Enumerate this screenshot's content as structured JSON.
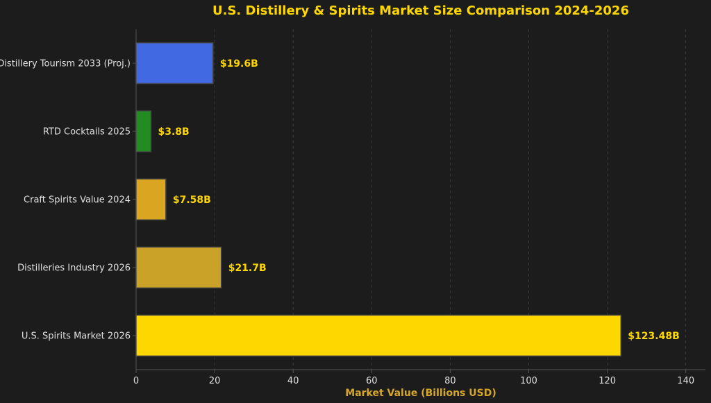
{
  "chart_data": {
    "type": "bar",
    "orientation": "horizontal",
    "title": "U.S. Distillery & Spirits Market Size Comparison 2024-2026",
    "xlabel": "Market Value (Billions USD)",
    "ylabel": "",
    "categories": [
      "Distillery Tourism 2033 (Proj.)",
      "RTD Cocktails 2025",
      "Craft Spirits Value 2024",
      "Distilleries Industry 2026",
      "U.S. Spirits Market 2026"
    ],
    "values": [
      19.6,
      3.8,
      7.58,
      21.7,
      123.48
    ],
    "value_labels": [
      "$19.6B",
      "$3.8B",
      "$7.58B",
      "$21.7B",
      "$123.48B"
    ],
    "bar_colors": [
      "#4169e1",
      "#228b22",
      "#daa520",
      "#c9a227",
      "#ffd700"
    ],
    "xlim": [
      0,
      145
    ],
    "xticks": [
      0,
      20,
      40,
      60,
      80,
      100,
      120,
      140
    ],
    "grid": true
  },
  "colors": {
    "background": "#1c1c1c",
    "title": "#ffd700",
    "axis_label": "#d4a72c",
    "tick_text": "#e0e0e0",
    "value_label": "#ffd700",
    "grid": "#3a3a3a",
    "axis_line": "#555555",
    "bar_edge": "#444444"
  }
}
